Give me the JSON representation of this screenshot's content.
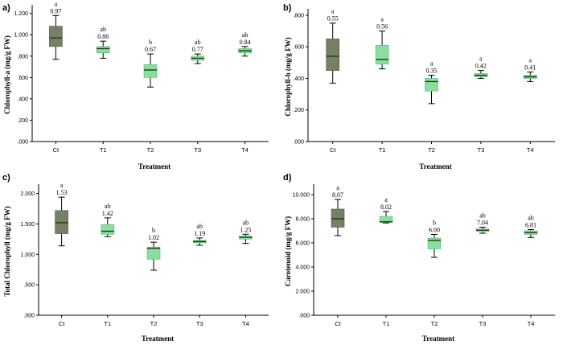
{
  "colors": {
    "dark_box": "#7f8a6e",
    "light_box": "#8fe3a3",
    "axis": "#000000",
    "median": "#1a3d1a"
  },
  "chart_data": [
    {
      "type": "box",
      "panel": "a)",
      "xlabel": "Treatment",
      "ylabel": "Chlorophyll-a (mg/g FW)",
      "ylim": [
        0,
        1.25
      ],
      "yticks": [
        ".000",
        ".200",
        ".400",
        ".600",
        ".800",
        "1.000",
        "1.200"
      ],
      "ytick_values": [
        0,
        0.2,
        0.4,
        0.6,
        0.8,
        1.0,
        1.2
      ],
      "categories": [
        "Ct",
        "T1",
        "T2",
        "T3",
        "T4"
      ],
      "boxes": [
        {
          "min": 0.77,
          "q1": 0.89,
          "median": 0.97,
          "q3": 1.08,
          "max": 1.18,
          "style": "dark"
        },
        {
          "min": 0.78,
          "q1": 0.83,
          "median": 0.87,
          "q3": 0.89,
          "max": 0.94,
          "style": "light"
        },
        {
          "min": 0.51,
          "q1": 0.6,
          "median": 0.67,
          "q3": 0.72,
          "max": 0.82,
          "style": "light"
        },
        {
          "min": 0.73,
          "q1": 0.76,
          "median": 0.78,
          "q3": 0.8,
          "max": 0.82,
          "style": "light"
        },
        {
          "min": 0.8,
          "q1": 0.83,
          "median": 0.85,
          "q3": 0.87,
          "max": 0.89,
          "style": "light"
        }
      ],
      "letters": [
        "a",
        "ab",
        "b",
        "ab",
        "ab"
      ],
      "means": [
        "0.97",
        "0.86",
        "0.67",
        "0.77",
        "0.84"
      ]
    },
    {
      "type": "box",
      "panel": "b)",
      "xlabel": "Treatment",
      "ylabel": "Chlorophyll-b (mg/g FW)",
      "ylim": [
        0,
        0.82
      ],
      "yticks": [
        ".000",
        ".200",
        ".400",
        ".600",
        ".800"
      ],
      "ytick_values": [
        0,
        0.2,
        0.4,
        0.6,
        0.8
      ],
      "categories": [
        "Ct",
        "T1",
        "T2",
        "T3",
        "T4"
      ],
      "boxes": [
        {
          "min": 0.37,
          "q1": 0.45,
          "median": 0.54,
          "q3": 0.65,
          "max": 0.75,
          "style": "dark"
        },
        {
          "min": 0.46,
          "q1": 0.49,
          "median": 0.52,
          "q3": 0.61,
          "max": 0.7,
          "style": "light"
        },
        {
          "min": 0.24,
          "q1": 0.32,
          "median": 0.38,
          "q3": 0.4,
          "max": 0.42,
          "style": "light"
        },
        {
          "min": 0.4,
          "q1": 0.41,
          "median": 0.42,
          "q3": 0.43,
          "max": 0.45,
          "style": "light"
        },
        {
          "min": 0.38,
          "q1": 0.4,
          "median": 0.41,
          "q3": 0.42,
          "max": 0.44,
          "style": "light"
        }
      ],
      "letters": [
        "a",
        "a",
        "a",
        "a",
        "a"
      ],
      "means": [
        "0.55",
        "0.56",
        "0.35",
        "0.42",
        "0.41"
      ]
    },
    {
      "type": "box",
      "panel": "c)",
      "xlabel": "Treatment",
      "ylabel": "Total Chlorophyll (mg/g FW)",
      "ylim": [
        0,
        2.1
      ],
      "yticks": [
        ".000",
        ".500",
        "1.000",
        "1.500",
        "2.000"
      ],
      "ytick_values": [
        0,
        0.5,
        1.0,
        1.5,
        2.0
      ],
      "categories": [
        "Ct",
        "T1",
        "T2",
        "T3",
        "T4"
      ],
      "boxes": [
        {
          "min": 1.14,
          "q1": 1.34,
          "median": 1.52,
          "q3": 1.72,
          "max": 1.94,
          "style": "dark"
        },
        {
          "min": 1.29,
          "q1": 1.33,
          "median": 1.38,
          "q3": 1.49,
          "max": 1.6,
          "style": "light"
        },
        {
          "min": 0.74,
          "q1": 0.92,
          "median": 1.1,
          "q3": 1.12,
          "max": 1.2,
          "style": "light"
        },
        {
          "min": 1.15,
          "q1": 1.19,
          "median": 1.21,
          "q3": 1.23,
          "max": 1.27,
          "style": "light"
        },
        {
          "min": 1.18,
          "q1": 1.25,
          "median": 1.28,
          "q3": 1.3,
          "max": 1.33,
          "style": "light"
        }
      ],
      "letters": [
        "a",
        "ab",
        "b",
        "ab",
        "ab"
      ],
      "means": [
        "1.53",
        "1.42",
        "1.02",
        "1.19",
        "1.25"
      ]
    },
    {
      "type": "box",
      "panel": "d)",
      "xlabel": "Treatment",
      "ylabel": "Carotenoid (mg/g FW)",
      "ylim": [
        0,
        10.6
      ],
      "yticks": [
        ".000",
        "2.000",
        "4.000",
        "6.000",
        "8.000",
        "10.000"
      ],
      "ytick_values": [
        0,
        2,
        4,
        6,
        8,
        10
      ],
      "categories": [
        "Ct",
        "T1",
        "T2",
        "T3",
        "T4"
      ],
      "boxes": [
        {
          "min": 6.6,
          "q1": 7.3,
          "median": 8.0,
          "q3": 8.8,
          "max": 9.6,
          "style": "dark"
        },
        {
          "min": 7.65,
          "q1": 7.7,
          "median": 7.75,
          "q3": 8.2,
          "max": 8.6,
          "style": "light"
        },
        {
          "min": 4.8,
          "q1": 5.5,
          "median": 6.2,
          "q3": 6.4,
          "max": 6.7,
          "style": "light"
        },
        {
          "min": 6.8,
          "q1": 6.95,
          "median": 7.05,
          "q3": 7.15,
          "max": 7.3,
          "style": "light"
        },
        {
          "min": 6.45,
          "q1": 6.7,
          "median": 6.85,
          "q3": 7.0,
          "max": 7.1,
          "style": "light"
        }
      ],
      "letters": [
        "a",
        "a",
        "b",
        "ab",
        "ab"
      ],
      "means": [
        "8.07",
        "8.02",
        "6.00",
        "7.04",
        "6.81"
      ]
    }
  ]
}
